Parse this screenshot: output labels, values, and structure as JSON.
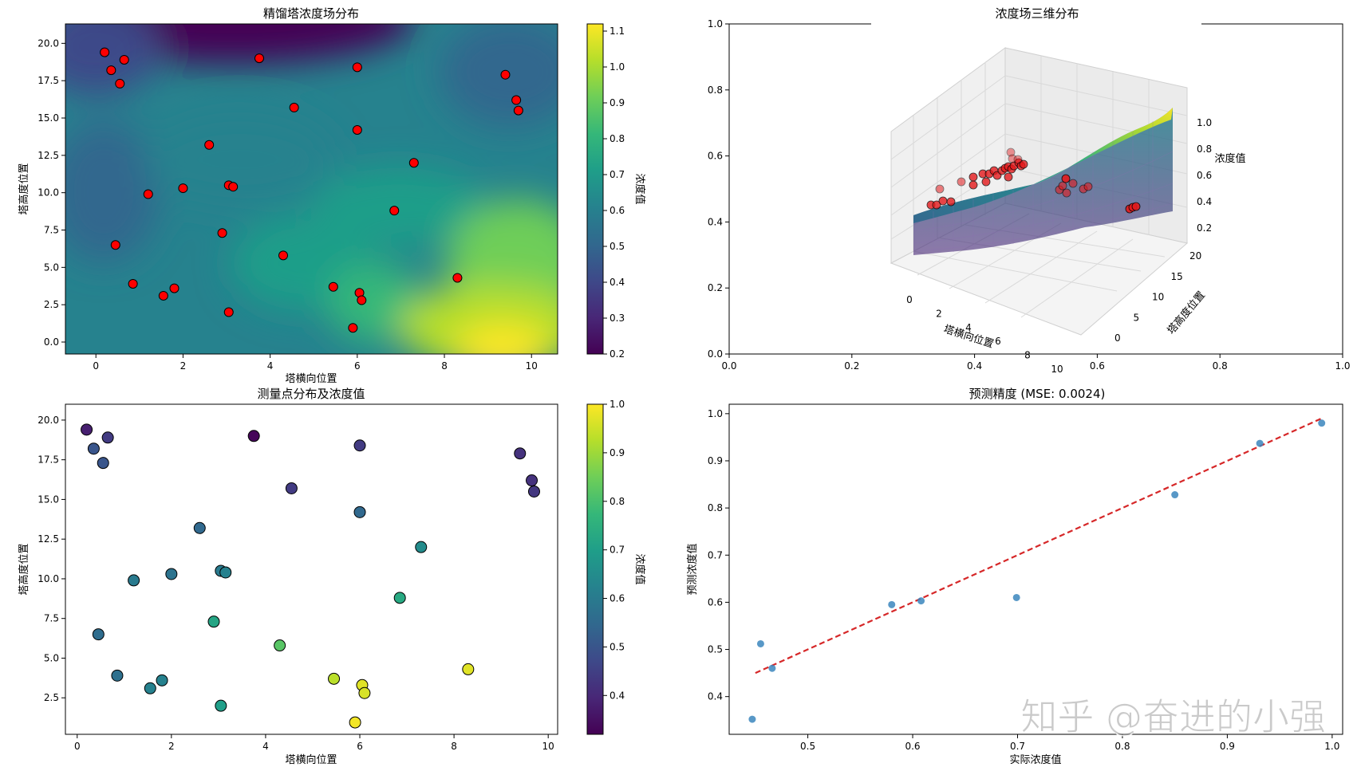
{
  "viridis": [
    "#440154",
    "#482777",
    "#3e4989",
    "#31688e",
    "#26828e",
    "#1f9e89",
    "#35b779",
    "#6ece58",
    "#b5de2b",
    "#fde725"
  ],
  "chart_data": [
    {
      "type": "heatmap",
      "title": "精馏塔浓度场分布",
      "xlabel": "塔横向位置",
      "ylabel": "塔高度位置",
      "colorbar_label": "浓度值",
      "xlim": [
        -0.7,
        10.6
      ],
      "ylim": [
        -0.8,
        21.3
      ],
      "xticks": [
        "0",
        "2",
        "4",
        "6",
        "8",
        "10"
      ],
      "xtick_values": [
        0,
        2,
        4,
        6,
        8,
        10
      ],
      "yticks": [
        "0.0",
        "2.5",
        "5.0",
        "7.5",
        "10.0",
        "12.5",
        "15.0",
        "17.5",
        "20.0"
      ],
      "ytick_values": [
        0,
        2.5,
        5,
        7.5,
        10,
        12.5,
        15,
        17.5,
        20
      ],
      "clim": [
        0.2,
        1.12
      ],
      "cbar_ticks": [
        "0.2",
        "0.3",
        "0.4",
        "0.5",
        "0.6",
        "0.7",
        "0.8",
        "0.9",
        "1.0",
        "1.1"
      ],
      "cbar_tick_values": [
        0.2,
        0.3,
        0.4,
        0.5,
        0.6,
        0.7,
        0.8,
        0.9,
        1.0,
        1.1
      ],
      "marker_color": "#ff0000",
      "points": [
        [
          0.2,
          19.4
        ],
        [
          0.35,
          18.2
        ],
        [
          0.65,
          18.9
        ],
        [
          0.55,
          17.3
        ],
        [
          3.75,
          19.0
        ],
        [
          6.0,
          18.4
        ],
        [
          9.4,
          17.9
        ],
        [
          9.65,
          16.2
        ],
        [
          9.7,
          15.5
        ],
        [
          4.55,
          15.7
        ],
        [
          6.0,
          14.2
        ],
        [
          2.6,
          13.2
        ],
        [
          7.3,
          12.0
        ],
        [
          1.2,
          9.9
        ],
        [
          2.0,
          10.3
        ],
        [
          3.05,
          10.5
        ],
        [
          3.15,
          10.4
        ],
        [
          6.85,
          8.8
        ],
        [
          0.45,
          6.5
        ],
        [
          2.9,
          7.3
        ],
        [
          4.3,
          5.8
        ],
        [
          0.85,
          3.9
        ],
        [
          1.8,
          3.6
        ],
        [
          1.55,
          3.1
        ],
        [
          5.45,
          3.7
        ],
        [
          6.05,
          3.3
        ],
        [
          6.1,
          2.8
        ],
        [
          3.05,
          2.0
        ],
        [
          8.3,
          4.3
        ],
        [
          5.9,
          0.95
        ]
      ]
    },
    {
      "type": "surface3d",
      "title": "浓度场三维分布",
      "xlabel": "塔横向位置",
      "ylabel": "塔高度位置",
      "zlabel": "浓度值",
      "xticks": [
        "0",
        "2",
        "4",
        "6",
        "8",
        "10"
      ],
      "yticks": [
        "0",
        "5",
        "10",
        "15",
        "20"
      ],
      "zticks": [
        "0.2",
        "0.4",
        "0.6",
        "0.8",
        "1.0"
      ],
      "outer_xticks": [
        "0.0",
        "0.2",
        "0.4",
        "0.6",
        "0.8",
        "1.0"
      ],
      "outer_yticks": [
        "0.0",
        "0.2",
        "0.4",
        "0.6",
        "0.8",
        "1.0"
      ],
      "outer_tick_values": [
        0,
        0.2,
        0.4,
        0.6,
        0.8,
        1.0
      ]
    },
    {
      "type": "scatter",
      "title": "测量点分布及浓度值",
      "xlabel": "塔横向位置",
      "ylabel": "塔高度位置",
      "colorbar_label": "浓度值",
      "xlim": [
        -0.25,
        10.2
      ],
      "ylim": [
        0.2,
        21.0
      ],
      "xticks": [
        "0",
        "2",
        "4",
        "6",
        "8",
        "10"
      ],
      "xtick_values": [
        0,
        2,
        4,
        6,
        8,
        10
      ],
      "yticks": [
        "2.5",
        "5.0",
        "7.5",
        "10.0",
        "12.5",
        "15.0",
        "17.5",
        "20.0"
      ],
      "ytick_values": [
        2.5,
        5,
        7.5,
        10,
        12.5,
        15,
        17.5,
        20
      ],
      "clim": [
        0.32,
        1.0
      ],
      "cbar_ticks": [
        "0.4",
        "0.5",
        "0.6",
        "0.7",
        "0.8",
        "0.9",
        "1.0"
      ],
      "cbar_tick_values": [
        0.4,
        0.5,
        0.6,
        0.7,
        0.8,
        0.9,
        1.0
      ],
      "points": [
        [
          0.2,
          19.4,
          0.38
        ],
        [
          0.35,
          18.2,
          0.5
        ],
        [
          0.65,
          18.9,
          0.44
        ],
        [
          0.55,
          17.3,
          0.5
        ],
        [
          3.75,
          19.0,
          0.33
        ],
        [
          6.0,
          18.4,
          0.44
        ],
        [
          9.4,
          17.9,
          0.42
        ],
        [
          9.65,
          16.2,
          0.42
        ],
        [
          9.7,
          15.5,
          0.43
        ],
        [
          4.55,
          15.7,
          0.44
        ],
        [
          6.0,
          14.2,
          0.55
        ],
        [
          2.6,
          13.2,
          0.55
        ],
        [
          7.3,
          12.0,
          0.65
        ],
        [
          1.2,
          9.9,
          0.6
        ],
        [
          2.0,
          10.3,
          0.58
        ],
        [
          3.05,
          10.5,
          0.6
        ],
        [
          3.15,
          10.4,
          0.62
        ],
        [
          6.85,
          8.8,
          0.73
        ],
        [
          0.45,
          6.5,
          0.56
        ],
        [
          2.9,
          7.3,
          0.72
        ],
        [
          4.3,
          5.8,
          0.82
        ],
        [
          0.85,
          3.9,
          0.57
        ],
        [
          1.8,
          3.6,
          0.62
        ],
        [
          1.55,
          3.1,
          0.62
        ],
        [
          5.45,
          3.7,
          0.93
        ],
        [
          6.05,
          3.3,
          0.97
        ],
        [
          6.1,
          2.8,
          0.96
        ],
        [
          3.05,
          2.0,
          0.7
        ],
        [
          8.3,
          4.3,
          0.97
        ],
        [
          5.9,
          0.95,
          0.99
        ]
      ]
    },
    {
      "type": "scatter",
      "title": "预测精度 (MSE: 0.0024)",
      "xlabel": "实际浓度值",
      "ylabel": "预测浓度值",
      "xlim": [
        0.425,
        1.01
      ],
      "ylim": [
        0.32,
        1.02
      ],
      "xticks": [
        "0.5",
        "0.6",
        "0.7",
        "0.8",
        "0.9",
        "1.0"
      ],
      "xtick_values": [
        0.5,
        0.6,
        0.7,
        0.8,
        0.9,
        1.0
      ],
      "yticks": [
        "0.4",
        "0.5",
        "0.6",
        "0.7",
        "0.8",
        "0.9",
        "1.0"
      ],
      "ytick_values": [
        0.4,
        0.5,
        0.6,
        0.7,
        0.8,
        0.9,
        1.0
      ],
      "point_color": "#3b86bd",
      "line_color": "#d62728",
      "fit_line": [
        [
          0.45,
          0.45
        ],
        [
          0.99,
          0.99
        ]
      ],
      "points": [
        [
          0.447,
          0.352
        ],
        [
          0.455,
          0.512
        ],
        [
          0.466,
          0.46
        ],
        [
          0.58,
          0.595
        ],
        [
          0.608,
          0.603
        ],
        [
          0.699,
          0.61
        ],
        [
          0.85,
          0.828
        ],
        [
          0.931,
          0.937
        ],
        [
          0.99,
          0.98
        ]
      ]
    }
  ],
  "watermark": "知乎 @奋进的小强"
}
